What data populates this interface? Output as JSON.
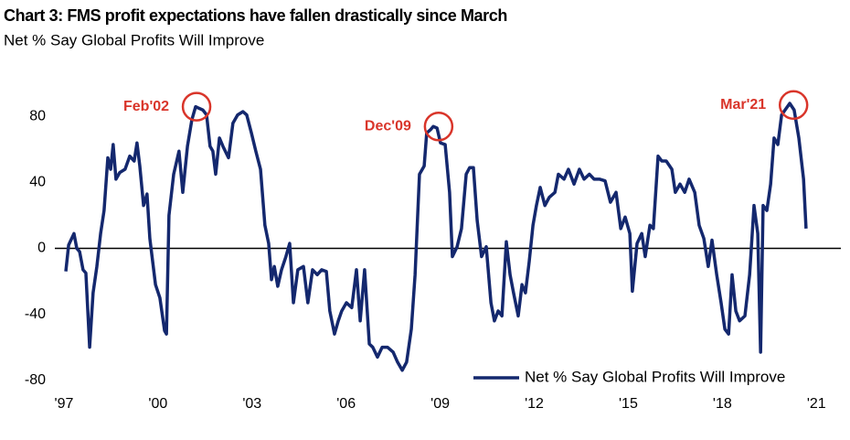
{
  "chart_data": {
    "type": "line",
    "title": "Chart 3: FMS profit  expectations have fallen drastically since March",
    "subtitle": "Net % Say Global Profits Will Improve",
    "x": [
      1997.06,
      1997.15,
      1997.32,
      1997.41,
      1997.5,
      1997.61,
      1997.7,
      1997.82,
      1997.93,
      1998.05,
      1998.17,
      1998.28,
      1998.4,
      1998.49,
      1998.57,
      1998.66,
      1998.78,
      1998.95,
      1999.1,
      1999.24,
      1999.33,
      1999.42,
      1999.54,
      1999.65,
      1999.74,
      1999.92,
      2000.06,
      2000.21,
      2000.27,
      2000.35,
      2000.5,
      2000.67,
      2000.79,
      2000.94,
      2001.08,
      2001.2,
      2001.31,
      2001.43,
      2001.55,
      2001.66,
      2001.75,
      2001.84,
      2001.96,
      2002.07,
      2002.25,
      2002.39,
      2002.54,
      2002.71,
      2002.83,
      2002.98,
      2003.12,
      2003.27,
      2003.41,
      2003.53,
      2003.62,
      2003.71,
      2003.82,
      2003.94,
      2004.08,
      2004.2,
      2004.32,
      2004.46,
      2004.64,
      2004.78,
      2004.93,
      2005.08,
      2005.22,
      2005.37,
      2005.48,
      2005.63,
      2005.75,
      2005.86,
      2006.01,
      2006.18,
      2006.33,
      2006.45,
      2006.59,
      2006.74,
      2006.85,
      2007.0,
      2007.15,
      2007.32,
      2007.5,
      2007.64,
      2007.79,
      2007.93,
      2008.08,
      2008.2,
      2008.34,
      2008.49,
      2008.57,
      2008.69,
      2008.78,
      2008.9,
      2009.01,
      2009.16,
      2009.3,
      2009.39,
      2009.54,
      2009.68,
      2009.83,
      2009.94,
      2010.06,
      2010.18,
      2010.32,
      2010.47,
      2010.62,
      2010.73,
      2010.85,
      2010.97,
      2011.11,
      2011.23,
      2011.34,
      2011.49,
      2011.61,
      2011.72,
      2011.84,
      2011.96,
      2012.07,
      2012.19,
      2012.34,
      2012.48,
      2012.66,
      2012.77,
      2012.95,
      2013.09,
      2013.27,
      2013.44,
      2013.59,
      2013.76,
      2013.91,
      2014.08,
      2014.26,
      2014.43,
      2014.61,
      2014.76,
      2014.9,
      2015.05,
      2015.13,
      2015.28,
      2015.43,
      2015.54,
      2015.69,
      2015.8,
      2015.95,
      2016.07,
      2016.21,
      2016.39,
      2016.5,
      2016.65,
      2016.8,
      2016.94,
      2017.12,
      2017.26,
      2017.41,
      2017.55,
      2017.67,
      2017.82,
      2017.96,
      2018.08,
      2018.2,
      2018.31,
      2018.43,
      2018.55,
      2018.72,
      2018.87,
      2019.01,
      2019.13,
      2019.22,
      2019.3,
      2019.42,
      2019.54,
      2019.65,
      2019.77,
      2019.89,
      2020.0,
      2020.15,
      2020.29,
      2020.44,
      2020.59,
      2020.67
    ],
    "series": [
      {
        "name": "Net % Say Global Profits Will Improve",
        "color": "#14286e",
        "values": [
          -14,
          2,
          9,
          0,
          -2,
          -13,
          -15,
          -60,
          -27,
          -11,
          9,
          23,
          55,
          48,
          63,
          42,
          46,
          48,
          56,
          53,
          64,
          50,
          26,
          33,
          6,
          -22,
          -30,
          -50,
          -52,
          20,
          45,
          59,
          34,
          62,
          78,
          86,
          85,
          84,
          81,
          62,
          59,
          45,
          67,
          62,
          55,
          76,
          81,
          83,
          81,
          70,
          59,
          48,
          14,
          3,
          -19,
          -11,
          -23,
          -13,
          -5,
          3,
          -33,
          -13,
          -11,
          -33,
          -13,
          -16,
          -13,
          -14,
          -38,
          -52,
          -44,
          -38,
          -33,
          -36,
          -13,
          -44,
          -13,
          -58,
          -60,
          -66,
          -60,
          -60,
          -63,
          -69,
          -74,
          -69,
          -49,
          -16,
          45,
          50,
          70,
          72,
          74,
          73,
          64,
          63,
          34,
          -5,
          1,
          12,
          45,
          49,
          49,
          17,
          -5,
          1,
          -33,
          -44,
          -38,
          -41,
          4,
          -16,
          -27,
          -41,
          -22,
          -27,
          -8,
          14,
          26,
          37,
          26,
          31,
          34,
          45,
          42,
          48,
          39,
          48,
          42,
          45,
          42,
          42,
          41,
          28,
          34,
          12,
          19,
          9,
          -26,
          3,
          9,
          -5,
          14,
          12,
          56,
          53,
          53,
          48,
          34,
          39,
          34,
          42,
          34,
          14,
          6,
          -11,
          5,
          -16,
          -33,
          -49,
          -52,
          -16,
          -38,
          -44,
          -41,
          -16,
          26,
          9,
          -63,
          26,
          23,
          39,
          67,
          63,
          81,
          84,
          88,
          84,
          67,
          42,
          12
        ]
      }
    ],
    "xlim": [
      1996.71,
      2021.78
    ],
    "xticks": [
      {
        "value": 1997,
        "label": "'97"
      },
      {
        "value": 2000,
        "label": "'00"
      },
      {
        "value": 2003,
        "label": "'03"
      },
      {
        "value": 2006,
        "label": "'06"
      },
      {
        "value": 2009,
        "label": "'09"
      },
      {
        "value": 2012,
        "label": "'12"
      },
      {
        "value": 2015,
        "label": "'15"
      },
      {
        "value": 2018,
        "label": "'18"
      },
      {
        "value": 2021,
        "label": "'21"
      }
    ],
    "ylim": [
      -88,
      98
    ],
    "yticks": [
      -80,
      -40,
      0,
      40,
      80
    ],
    "annotations": [
      {
        "label": "Feb'02",
        "x": 2001.23,
        "y": 86
      },
      {
        "label": "Dec'09",
        "x": 2008.95,
        "y": 74
      },
      {
        "label": "Mar'21",
        "x": 2020.27,
        "y": 87
      }
    ],
    "annotation_color": "#d9352a",
    "legend": "lower right"
  }
}
